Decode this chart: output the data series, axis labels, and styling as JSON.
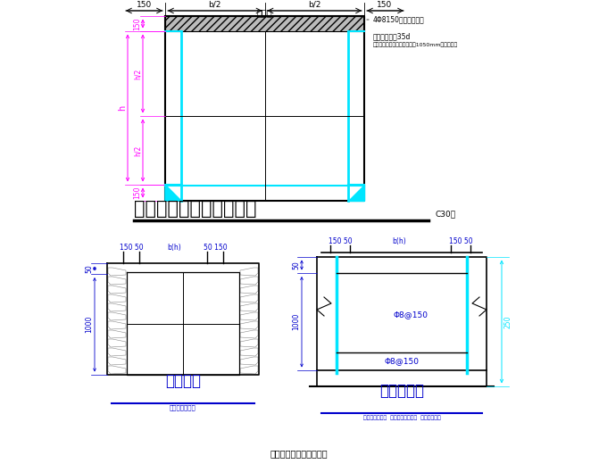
{
  "bg_color": "#ffffff",
  "line_color": "#000000",
  "cyan_color": "#00e5ff",
  "magenta_color": "#ff00ff",
  "blue_color": "#0000cc",
  "hatch_color": "#aaaaaa",
  "title1": "全埋地式抗滑桩护壁详图",
  "title1_note": "C30砼",
  "title2": "护壁详图",
  "title2_sub": "用于矩形孔桩基",
  "title3": "护壁加筋图",
  "title3_sub1": "用于护壁土层段  用于钢筋混凝土圈  用于砂土层处",
  "title4": "人工挖孔桩抗滑桩时设置",
  "anno1": "4Φ8150双向护壁钢筋",
  "anno2": "上下钢筋搭接35d",
  "anno3": "两断面圆护壁处至出原地地面1050mm兼土平筋筋",
  "rebar1": "Φ8@150",
  "rebar2": "Φ8@150"
}
